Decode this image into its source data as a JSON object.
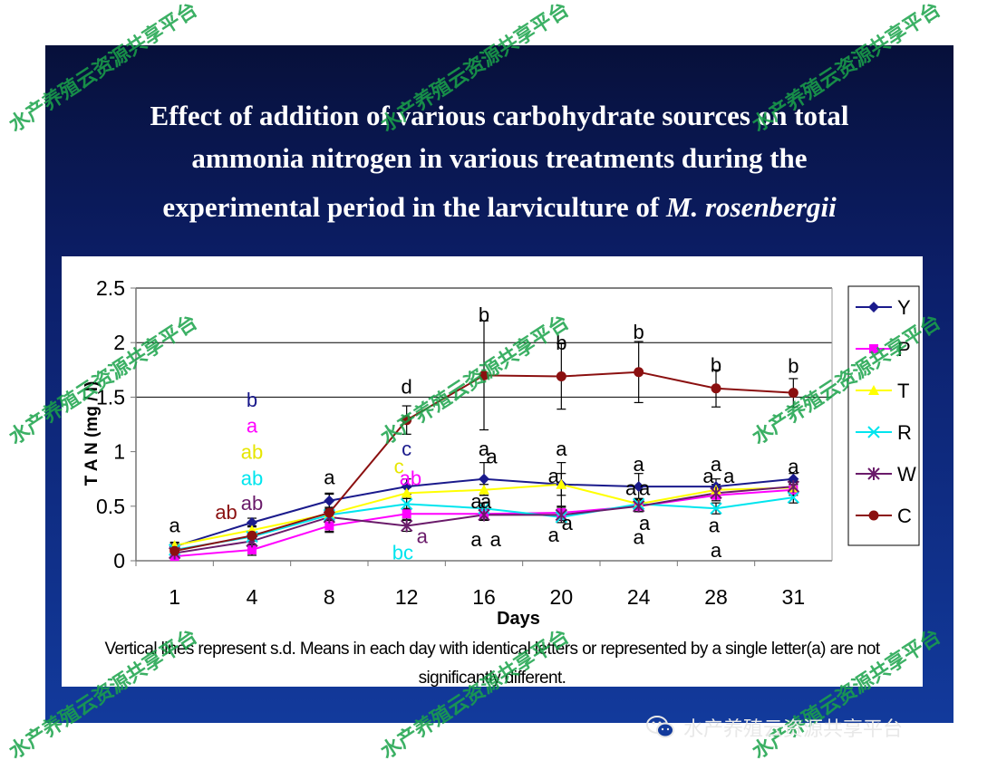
{
  "slide": {
    "title_line1": "Effect of addition of various carbohydrate sources on total",
    "title_line2": "ammonia nitrogen in various treatments during the",
    "title_line3_prefix": "experimental period in the larviculture of ",
    "title_line3_italic": "M. rosenbergii"
  },
  "caption": {
    "line1": "Vertical lines represent s.d. Means in each day with identical letters or represented by a single letter(a) are not",
    "line2": "significantly different."
  },
  "watermark": {
    "text": "水产养殖云资源共享平台",
    "wechat_label": "水产养殖云资源共享平台"
  },
  "chart_data": {
    "type": "line",
    "title": "",
    "xlabel": "Days",
    "ylabel": "T A N (mg / l)",
    "categories": [
      "1",
      "4",
      "8",
      "12",
      "16",
      "20",
      "24",
      "28",
      "31"
    ],
    "ylim": [
      0,
      2.5
    ],
    "yticks": [
      "0",
      "0.5",
      "1",
      "1.5",
      "2",
      "2.5"
    ],
    "grid": "horizontal gridlines at 1.5, 2, 2.5",
    "legend_position": "right",
    "series": [
      {
        "name": "Y",
        "color": "#1a1a8c",
        "marker": "diamond",
        "values": [
          0.13,
          0.35,
          0.55,
          0.68,
          0.75,
          0.7,
          0.68,
          0.68,
          0.75
        ],
        "err": [
          0.03,
          0.04,
          0.06,
          0.07,
          0.15,
          0.2,
          0.12,
          0.07,
          0.05
        ]
      },
      {
        "name": "P",
        "color": "#ff00ff",
        "marker": "square",
        "values": [
          0.04,
          0.1,
          0.32,
          0.43,
          0.43,
          0.44,
          0.5,
          0.6,
          0.65
        ],
        "err": [
          0.02,
          0.05,
          0.05,
          0.05,
          0.05,
          0.05,
          0.05,
          0.05,
          0.05
        ]
      },
      {
        "name": "T",
        "color": "#ffff00",
        "marker": "triangle",
        "values": [
          0.14,
          0.28,
          0.43,
          0.62,
          0.65,
          0.7,
          0.52,
          0.65,
          0.67
        ],
        "err": [
          0.03,
          0.04,
          0.05,
          0.05,
          0.05,
          0.1,
          0.05,
          0.05,
          0.05
        ]
      },
      {
        "name": "R",
        "color": "#00e5ee",
        "marker": "x",
        "values": [
          0.1,
          0.22,
          0.42,
          0.52,
          0.48,
          0.4,
          0.52,
          0.48,
          0.58
        ],
        "err": [
          0.03,
          0.04,
          0.05,
          0.05,
          0.05,
          0.05,
          0.05,
          0.05,
          0.05
        ]
      },
      {
        "name": "W",
        "color": "#6a1b6a",
        "marker": "star",
        "values": [
          0.07,
          0.18,
          0.4,
          0.32,
          0.42,
          0.42,
          0.5,
          0.62,
          0.68
        ],
        "err": [
          0.02,
          0.04,
          0.05,
          0.05,
          0.05,
          0.05,
          0.05,
          0.05,
          0.05
        ]
      },
      {
        "name": "C",
        "color": "#8b1010",
        "marker": "circle",
        "values": [
          0.09,
          0.23,
          0.44,
          1.29,
          1.7,
          1.69,
          1.73,
          1.58,
          1.54
        ],
        "err": [
          0.05,
          0.03,
          0.18,
          0.13,
          0.5,
          0.3,
          0.28,
          0.17,
          0.13
        ]
      }
    ],
    "annotations": [
      {
        "day": "1",
        "y": 0.33,
        "text": "a",
        "color": "#000000"
      },
      {
        "day": "4",
        "y": 1.48,
        "text": "b",
        "color": "#1a1a8c"
      },
      {
        "day": "4",
        "y": 1.24,
        "text": "a",
        "color": "#ff00ff"
      },
      {
        "day": "4",
        "y": 1.0,
        "text": "ab",
        "color": "#e6e600"
      },
      {
        "day": "4",
        "y": 0.76,
        "text": "ab",
        "color": "#00e5ee"
      },
      {
        "day": "4",
        "y": 0.53,
        "text": "ab",
        "color": "#6a1b6a"
      },
      {
        "day": "3",
        "y": 0.45,
        "text": "ab",
        "color": "#8b1010"
      },
      {
        "day": "8",
        "y": 0.77,
        "text": "a",
        "color": "#000000"
      },
      {
        "day": "12",
        "y": 1.6,
        "text": "d",
        "color": "#000000"
      },
      {
        "day": "12",
        "y": 1.03,
        "text": "c",
        "color": "#1a1a8c"
      },
      {
        "day": "11.6",
        "y": 0.87,
        "text": "c",
        "color": "#e6e600"
      },
      {
        "day": "12.2",
        "y": 0.76,
        "text": "ab",
        "color": "#ff00ff"
      },
      {
        "day": "11.8",
        "y": 0.08,
        "text": "bc",
        "color": "#00e5ee"
      },
      {
        "day": "12.8",
        "y": 0.23,
        "text": "a",
        "color": "#6a1b6a"
      },
      {
        "day": "16",
        "y": 2.26,
        "text": "b",
        "color": "#000000"
      },
      {
        "day": "16",
        "y": 1.03,
        "text": "a",
        "color": "#000000"
      },
      {
        "day": "16.4",
        "y": 0.96,
        "text": "a",
        "color": "#000000"
      },
      {
        "day": "15.6",
        "y": 0.55,
        "text": "a",
        "color": "#000000"
      },
      {
        "day": "16.1",
        "y": 0.55,
        "text": "a",
        "color": "#000000"
      },
      {
        "day": "15.6",
        "y": 0.2,
        "text": "a",
        "color": "#000000"
      },
      {
        "day": "16.6",
        "y": 0.2,
        "text": "a",
        "color": "#000000"
      },
      {
        "day": "20",
        "y": 2.0,
        "text": "b",
        "color": "#000000"
      },
      {
        "day": "20",
        "y": 1.03,
        "text": "a",
        "color": "#000000"
      },
      {
        "day": "19.6",
        "y": 0.78,
        "text": "a",
        "color": "#000000"
      },
      {
        "day": "20.3",
        "y": 0.35,
        "text": "a",
        "color": "#000000"
      },
      {
        "day": "19.6",
        "y": 0.24,
        "text": "a",
        "color": "#000000"
      },
      {
        "day": "24",
        "y": 2.1,
        "text": "b",
        "color": "#000000"
      },
      {
        "day": "24",
        "y": 0.89,
        "text": "a",
        "color": "#000000"
      },
      {
        "day": "23.6",
        "y": 0.67,
        "text": "a",
        "color": "#000000"
      },
      {
        "day": "24.3",
        "y": 0.67,
        "text": "a",
        "color": "#000000"
      },
      {
        "day": "24.3",
        "y": 0.35,
        "text": "a",
        "color": "#000000"
      },
      {
        "day": "24",
        "y": 0.22,
        "text": "a",
        "color": "#000000"
      },
      {
        "day": "28",
        "y": 1.8,
        "text": "b",
        "color": "#000000"
      },
      {
        "day": "28",
        "y": 0.89,
        "text": "a",
        "color": "#000000"
      },
      {
        "day": "27.6",
        "y": 0.78,
        "text": "a",
        "color": "#000000"
      },
      {
        "day": "28.5",
        "y": 0.78,
        "text": "a",
        "color": "#000000"
      },
      {
        "day": "27.9",
        "y": 0.33,
        "text": "a",
        "color": "#000000"
      },
      {
        "day": "28",
        "y": 0.1,
        "text": "a",
        "color": "#000000"
      },
      {
        "day": "31",
        "y": 1.79,
        "text": "b",
        "color": "#000000"
      },
      {
        "day": "31",
        "y": 0.87,
        "text": "a",
        "color": "#000000"
      }
    ]
  }
}
